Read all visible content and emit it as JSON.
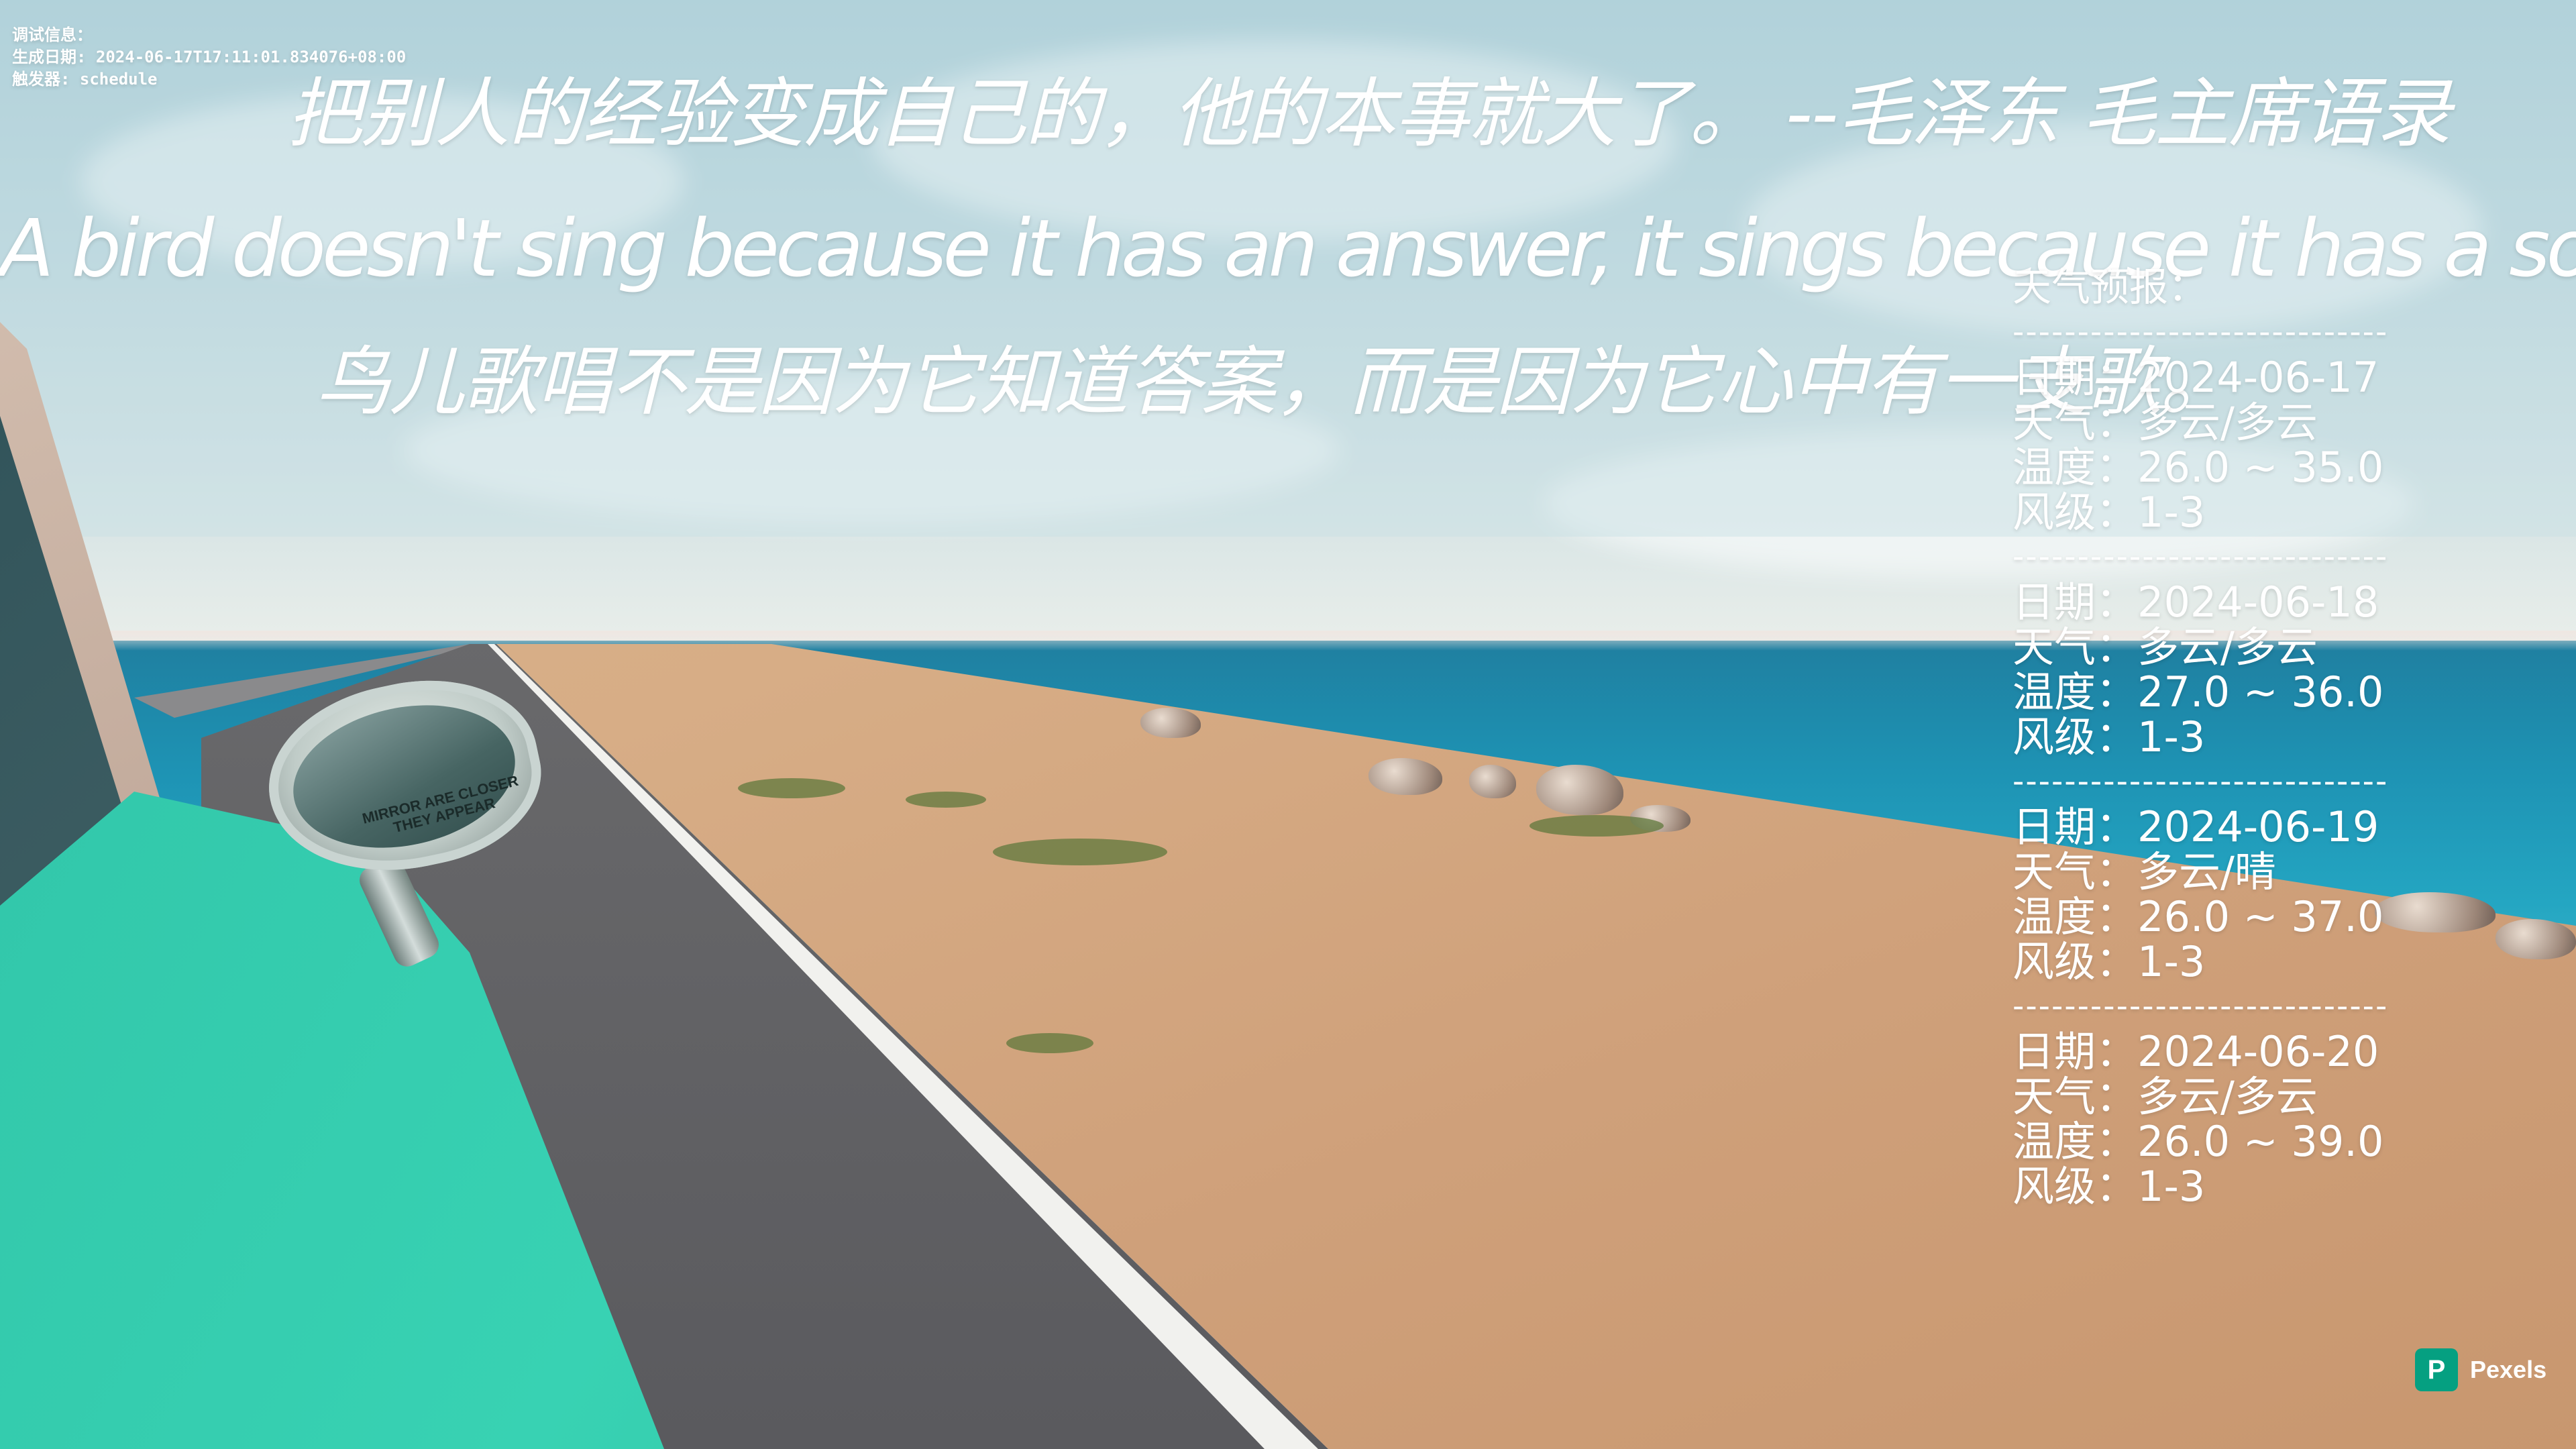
{
  "debug": {
    "line1": "调试信息：",
    "line2": "生成日期: 2024-06-17T17:11:01.834076+08:00",
    "line3": "触发器: schedule"
  },
  "quotes": {
    "cn": "把别人的经验变成自己的，他的本事就大了。 --毛泽东 毛主席语录",
    "en": "A bird doesn't sing because it has an answer, it sings because it has a song.",
    "cn_translation": "鸟儿歌唱不是因为它知道答案，而是因为它心中有一支歌。"
  },
  "forecast": {
    "title": "天气预报：",
    "separator": "-----------------------------",
    "days": [
      {
        "date": "日期：2024-06-17",
        "weather": "天气：多云/多云",
        "temp": "温度：26.0 ~ 35.0",
        "wind": "风级：1-3"
      },
      {
        "date": "日期：2024-06-18",
        "weather": "天气：多云/多云",
        "temp": "温度：27.0 ~ 36.0",
        "wind": "风级：1-3"
      },
      {
        "date": "日期：2024-06-19",
        "weather": "天气：多云/晴",
        "temp": "温度：26.0 ~ 37.0",
        "wind": "风级：1-3"
      },
      {
        "date": "日期：2024-06-20",
        "weather": "天气：多云/多云",
        "temp": "温度：26.0 ~ 39.0",
        "wind": "风级：1-3"
      }
    ]
  },
  "mirror_text": {
    "line1": "MIRROR ARE CLOSER",
    "line2": "THEY APPEAR"
  },
  "watermark": {
    "brand": "Pexels",
    "icon_letter": "P",
    "icon_color": "#05a081"
  },
  "colors": {
    "text": "#ffffff",
    "sea": "#1e93b4",
    "car": "#38d2b3"
  }
}
